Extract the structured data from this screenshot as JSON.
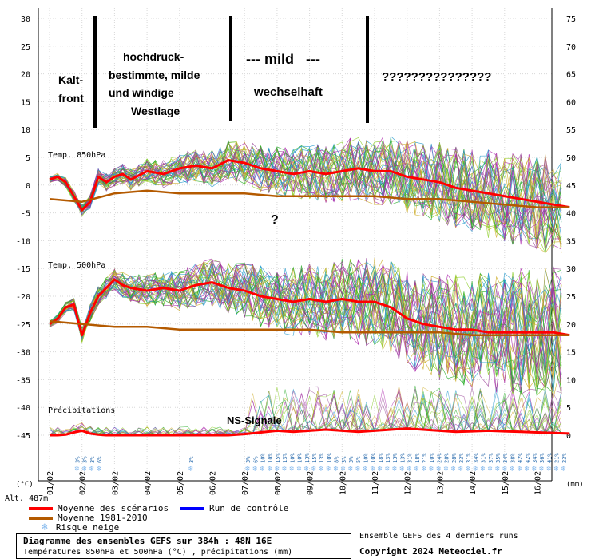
{
  "chart_data": {
    "type": "line",
    "title": "Diagramme des ensembles GEFS sur 384h : 48N 16E",
    "subtitle": "Températures 850hPa et 500hPa (°C) , précipitations (mm)",
    "left_axis": {
      "label": "(°C)",
      "ticks": [
        30,
        25,
        20,
        15,
        10,
        5,
        0,
        -5,
        -10,
        -15,
        -20,
        -25,
        -30,
        -35,
        -40,
        -45
      ],
      "range": [
        -45,
        30
      ]
    },
    "right_axis": {
      "label": "(mm)",
      "ticks": [
        75,
        70,
        65,
        60,
        55,
        50,
        45,
        40,
        35,
        30,
        25,
        20,
        15,
        10,
        5,
        0
      ],
      "range": [
        0,
        75
      ]
    },
    "x_axis": {
      "ticks": [
        "01/02",
        "02/02",
        "03/02",
        "04/02",
        "05/02",
        "06/02",
        "07/02",
        "08/02",
        "09/02",
        "10/02",
        "11/02",
        "12/02",
        "13/02",
        "14/02",
        "15/02",
        "16/02"
      ]
    },
    "grid": true,
    "panel_labels": [
      "Temp. 850hPa",
      "Temp. 500hPa",
      "Précipitations"
    ],
    "altitude_label": "Alt. 487m",
    "series": [
      {
        "name": "Moyenne des scénarios",
        "color": "#ff0000",
        "x": [
          0,
          0.25,
          0.5,
          0.75,
          1,
          1.25,
          1.5,
          1.75,
          2,
          2.25,
          2.5,
          3,
          3.5,
          4,
          4.5,
          5,
          5.5,
          6,
          6.5,
          7,
          7.5,
          8,
          8.5,
          9,
          9.5,
          10,
          10.5,
          11,
          11.5,
          12,
          12.5,
          13,
          13.5,
          14,
          14.5,
          15,
          15.5,
          16
        ],
        "t850": [
          1,
          1.5,
          0.5,
          -2,
          -4.5,
          -3,
          1.5,
          0.5,
          1.5,
          2,
          1,
          2.5,
          2,
          3,
          3.5,
          3,
          4.5,
          4,
          3,
          2.5,
          2,
          2.5,
          2,
          2.5,
          3,
          2.5,
          2.5,
          1.5,
          1,
          0.5,
          -0.5,
          -1,
          -1.5,
          -2,
          -2.5,
          -3,
          -3.5,
          -4
        ],
        "t500": [
          -25,
          -24,
          -22,
          -21.5,
          -27,
          -23,
          -20,
          -18.5,
          -17,
          -18,
          -18.5,
          -19,
          -18.5,
          -19,
          -18,
          -17.5,
          -18.5,
          -19,
          -20,
          -20.5,
          -21,
          -20.5,
          -21,
          -20.5,
          -21,
          -21,
          -22,
          -24,
          -25,
          -25.5,
          -26,
          -26,
          -26.5,
          -26.5,
          -26.5,
          -26.5,
          -26.5,
          -27
        ],
        "precip": [
          0,
          0,
          0.1,
          0.5,
          0.8,
          0.3,
          0.1,
          0,
          0,
          0,
          0,
          0,
          0,
          0,
          0,
          0,
          0,
          0.2,
          0.5,
          0.8,
          0.6,
          0.8,
          1,
          0.8,
          0.6,
          0.8,
          1,
          1.2,
          1,
          0.8,
          0.6,
          0.7,
          0.8,
          0.7,
          0.6,
          0.5,
          0.4,
          0.3
        ]
      },
      {
        "name": "Moyenne 1981-2010",
        "color": "#b45a00",
        "x": [
          0,
          1,
          2,
          3,
          4,
          5,
          6,
          7,
          8,
          9,
          10,
          11,
          12,
          13,
          14,
          15,
          16
        ],
        "t850": [
          -2.5,
          -3,
          -1.5,
          -1,
          -1.5,
          -1.5,
          -1.5,
          -2,
          -2,
          -2,
          -2,
          -2.5,
          -2.5,
          -3,
          -3.5,
          -4,
          -4
        ],
        "t500": [
          -24.5,
          -25,
          -25.5,
          -25.5,
          -26,
          -26,
          -26,
          -26,
          -26,
          -26.5,
          -26.5,
          -26.5,
          -26.5,
          -27,
          -27,
          -27,
          -27
        ]
      },
      {
        "name": "Run de contrôle",
        "color": "#0000ff"
      },
      {
        "name": "Risque neige",
        "color": "#88bbee"
      }
    ],
    "snow_risk": [
      {
        "x": 0.75,
        "labels": [
          "3%",
          "3%",
          "3%",
          "6%"
        ]
      },
      {
        "x": 4.25,
        "labels": [
          "3%"
        ]
      },
      {
        "x": 6.0,
        "labels": [
          "3%",
          "6%",
          "10%",
          "10%",
          "15%",
          "13%",
          "10%",
          "10%",
          "13%",
          "15%",
          "13%",
          "10%",
          "8%",
          "3%",
          "3%",
          "5%",
          "10%",
          "10%",
          "18%",
          "13%",
          "13%",
          "13%",
          "31%",
          "18%",
          "21%",
          "10%",
          "24%",
          "28%",
          "28%",
          "23%",
          "31%",
          "34%",
          "31%",
          "37%",
          "35%",
          "34%",
          "38%",
          "42%",
          "42%",
          "34%",
          "36%",
          "41%",
          "21%",
          "23%"
        ]
      }
    ]
  },
  "annotations": [
    {
      "text": "hochdruck-",
      "color": "#000000"
    },
    {
      "text": "bestimmte, milde",
      "color": "#000000"
    },
    {
      "text": "und windige",
      "color": "#000000"
    },
    {
      "text": "Westlage",
      "color": "#000000"
    },
    {
      "text": "Kalt-",
      "color": "#000000"
    },
    {
      "text": "front",
      "color": "#000000"
    },
    {
      "text": "--- mild   ---",
      "color": "#000000"
    },
    {
      "text": "wechselhaft",
      "color": "#000000"
    },
    {
      "text": "???????????????",
      "color": "#000000"
    },
    {
      "text": "?",
      "color": "#000000"
    },
    {
      "text": "NS-Signale",
      "color": "#000000"
    }
  ],
  "legend": [
    {
      "label": "Moyenne des scénarios",
      "color": "#ff0000"
    },
    {
      "label": "Moyenne 1981-2010",
      "color": "#b45a00"
    },
    {
      "label": "Run de contrôle",
      "color": "#0000ff"
    },
    {
      "label": "Risque neige",
      "color": "#88bbee",
      "icon": "snowflake-icon"
    }
  ],
  "footer": {
    "title": "Diagramme des ensembles GEFS sur 384h : 48N 16E",
    "subtitle": "Températures 850hPa et 500hPa (°C) , précipitations (mm)",
    "note": "Ensemble GEFS des 4 derniers runs",
    "copyright": "Copyright 2024 Meteociel.fr"
  }
}
